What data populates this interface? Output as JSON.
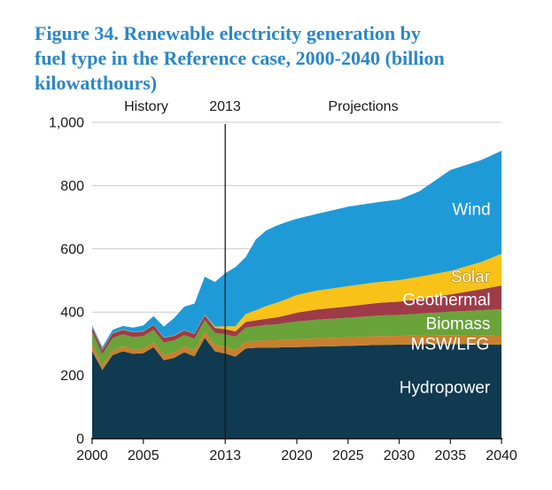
{
  "title_lines": [
    "Figure 34. Renewable electricity generation by",
    "fuel type in the Reference case, 2000-2040 (billion",
    "kilowatthours)"
  ],
  "header": {
    "history": "History",
    "divider_year": "2013",
    "projections": "Projections"
  },
  "axes": {
    "y_tick_labels": [
      "0",
      "200",
      "400",
      "600",
      "800",
      "1,000"
    ],
    "x_tick_labels": [
      "2000",
      "2005",
      "2013",
      "2020",
      "2025",
      "2030",
      "2035",
      "2040"
    ]
  },
  "colors": {
    "title_text": "#2C87C5",
    "gridline": "#C9C9C9",
    "axis": "#1A1A1A",
    "divider_line": "#1A1A1A",
    "area_label_text": "#FFFFFF"
  },
  "chart_data": {
    "type": "area",
    "stacked": true,
    "title": "Figure 34. Renewable electricity generation by fuel type in the Reference case, 2000-2040 (billion kilowatthours)",
    "unit": "billion kilowatthours",
    "xlabel": "",
    "ylabel": "",
    "xlim": [
      2000,
      2040
    ],
    "ylim": [
      0,
      1000
    ],
    "grid": "horizontal",
    "legend_position": "labels-inside-areas",
    "divider_year": 2013,
    "annotations": [
      "History",
      "2013",
      "Projections"
    ],
    "x": [
      2000,
      2001,
      2002,
      2003,
      2004,
      2005,
      2006,
      2007,
      2008,
      2009,
      2010,
      2011,
      2012,
      2013,
      2014,
      2015,
      2016,
      2017,
      2018,
      2019,
      2020,
      2022,
      2025,
      2028,
      2030,
      2032,
      2035,
      2038,
      2040
    ],
    "series": [
      {
        "name": "hydropower",
        "label": "Hydropower",
        "color": "#103A50",
        "values": [
          276,
          217,
          264,
          276,
          268,
          270,
          289,
          248,
          255,
          273,
          260,
          319,
          276,
          269,
          259,
          285,
          287,
          288,
          288,
          289,
          289,
          291,
          293,
          296,
          297,
          298,
          299,
          298,
          297
        ]
      },
      {
        "name": "msw-lfg",
        "label": "MSW/LFG",
        "color": "#C8802F",
        "values": [
          23,
          15,
          15,
          16,
          15,
          15,
          16,
          17,
          18,
          18,
          19,
          19,
          20,
          21,
          21,
          22,
          22,
          23,
          23,
          24,
          25,
          26,
          27,
          28,
          28,
          28,
          28,
          28,
          28
        ]
      },
      {
        "name": "biomass",
        "label": "Biomass",
        "color": "#69A339",
        "values": [
          38,
          35,
          39,
          38,
          38,
          39,
          39,
          39,
          37,
          36,
          37,
          37,
          38,
          40,
          42,
          44,
          46,
          48,
          50,
          53,
          56,
          59,
          62,
          65,
          66,
          69,
          74,
          80,
          84
        ]
      },
      {
        "name": "geothermal",
        "label": "Geothermal",
        "color": "#9E3B49",
        "values": [
          14,
          14,
          15,
          14,
          15,
          15,
          15,
          15,
          15,
          15,
          15,
          15,
          16,
          16,
          17,
          18,
          19,
          20,
          22,
          24,
          28,
          32,
          36,
          40,
          42,
          47,
          55,
          66,
          75
        ]
      },
      {
        "name": "solar",
        "label": "Solar",
        "color": "#F8C218",
        "values": [
          1,
          1,
          1,
          1,
          1,
          1,
          1,
          1,
          1,
          1,
          1,
          2,
          4,
          9,
          16,
          25,
          32,
          40,
          46,
          51,
          56,
          60,
          64,
          66,
          68,
          70,
          74,
          86,
          100
        ]
      },
      {
        "name": "wind",
        "label": "Wind",
        "color": "#1E9BD7",
        "values": [
          6,
          7,
          10,
          11,
          14,
          18,
          27,
          34,
          55,
          74,
          95,
          120,
          141,
          168,
          187,
          180,
          224,
          239,
          244,
          244,
          241,
          243,
          251,
          253,
          255,
          270,
          319,
          322,
          326
        ]
      }
    ]
  }
}
